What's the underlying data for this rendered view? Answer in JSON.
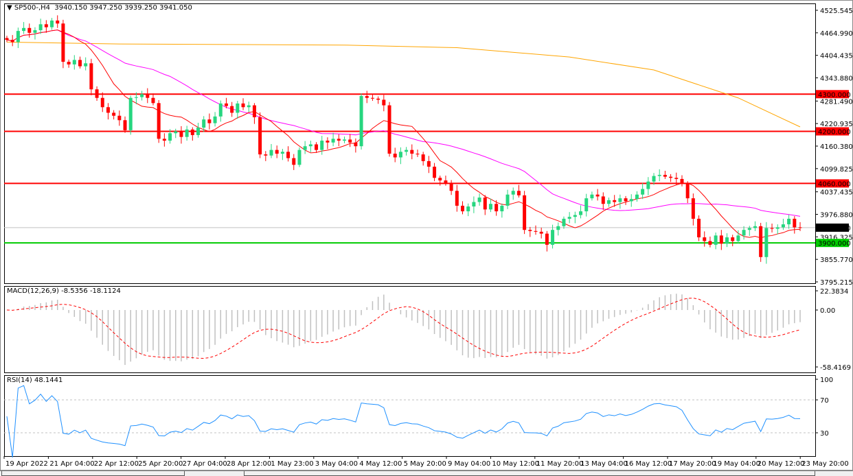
{
  "header": {
    "symbol": "SP500-,H4",
    "open": "3940.150",
    "high": "3947.250",
    "low": "3939.250",
    "close": "3941.050"
  },
  "macd": {
    "label": "MACD(12,26,9)",
    "main": "-8.5356",
    "signal": "-18.1124",
    "axis": [
      "22.3834",
      "0.00",
      "-58.4169"
    ]
  },
  "rsi": {
    "label": "RSI(14)",
    "value": "48.1441",
    "axis": [
      "100",
      "70",
      "30"
    ]
  },
  "colors": {
    "bull": "#26d67f",
    "bear": "#ff0000",
    "ma_fast": "#ff0000",
    "ma_mid": "#ff00ff",
    "ma_slow": "#ffa500",
    "rsi": "#1e90ff",
    "support": "#00cc00",
    "resistance": "#ff0000"
  },
  "price_axis": [
    "4525.545",
    "4464.990",
    "4404.435",
    "4343.880",
    "4281.490",
    "4220.935",
    "4160.380",
    "4099.825",
    "4037.435",
    "3976.880",
    "3916.325",
    "3855.770",
    "3795.215"
  ],
  "levels": [
    {
      "price": 4300,
      "label": "4300.000",
      "kind": "resistance"
    },
    {
      "price": 4200,
      "label": "4200.000",
      "kind": "resistance"
    },
    {
      "price": 4060,
      "label": "4060.000",
      "kind": "resistance"
    },
    {
      "price": 3900,
      "label": "3900.000",
      "kind": "support"
    }
  ],
  "current_price": {
    "price": 3941.05,
    "label": "3941.050"
  },
  "time_axis": [
    "19 Apr 2022",
    "21 Apr 04:00",
    "22 Apr 12:00",
    "25 Apr 20:00",
    "27 Apr 04:00",
    "28 Apr 12:00",
    "1 May 23:00",
    "3 May 04:00",
    "4 May 12:00",
    "5 May 20:00",
    "9 May 04:00",
    "10 May 12:00",
    "11 May 20:00",
    "13 May 04:00",
    "16 May 12:00",
    "17 May 20:00",
    "19 May 04:00",
    "20 May 12:00",
    "23 May 20:00"
  ],
  "chart_data": {
    "type": "candlestick",
    "ylim": [
      3795.215,
      4525.545
    ],
    "closes": [
      4446,
      4440,
      4470,
      4478,
      4465,
      4472,
      4488,
      4480,
      4498,
      4490,
      4387,
      4380,
      4392,
      4375,
      4383,
      4313,
      4290,
      4265,
      4250,
      4242,
      4230,
      4203,
      4290,
      4292,
      4300,
      4290,
      4276,
      4180,
      4175,
      4195,
      4200,
      4185,
      4205,
      4190,
      4210,
      4232,
      4222,
      4240,
      4275,
      4268,
      4250,
      4275,
      4265,
      4270,
      4238,
      4138,
      4135,
      4150,
      4140,
      4145,
      4128,
      4110,
      4150,
      4160,
      4165,
      4150,
      4175,
      4170,
      4180,
      4175,
      4178,
      4170,
      4160,
      4295,
      4290,
      4288,
      4285,
      4270,
      4140,
      4130,
      4145,
      4150,
      4140,
      4138,
      4120,
      4105,
      4075,
      4068,
      4060,
      4040,
      4000,
      3985,
      3998,
      4010,
      4022,
      3990,
      4005,
      3985,
      4000,
      4030,
      4040,
      4028,
      3935,
      3932,
      3930,
      3925,
      3895,
      3935,
      3945,
      3965,
      3970,
      3975,
      3985,
      4020,
      4030,
      4025,
      4005,
      4015,
      4010,
      4020,
      4012,
      4018,
      4030,
      4045,
      4065,
      4080,
      4083,
      4078,
      4075,
      4072,
      4060,
      4020,
      3965,
      3915,
      3905,
      3895,
      3920,
      3898,
      3915,
      3905,
      3920,
      3935,
      3940,
      3945,
      3862,
      3940,
      3938,
      3942,
      3950,
      3965,
      3942,
      3941
    ],
    "ma_slow_points": [
      [
        0,
        4440
      ],
      [
        20,
        4435
      ],
      [
        60,
        4432
      ],
      [
        80,
        4425
      ],
      [
        100,
        4400
      ],
      [
        115,
        4365
      ],
      [
        130,
        4290
      ],
      [
        141,
        4212
      ]
    ],
    "ma_fast_period": 10,
    "ma_mid_period": 30,
    "rsi_levels": [
      70,
      30
    ]
  }
}
